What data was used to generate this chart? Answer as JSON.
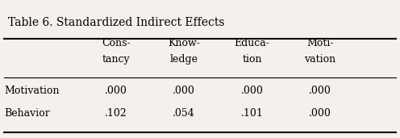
{
  "title": "Table 6. Standardized Indirect Effects",
  "col_headers": [
    [
      "Cons-",
      "tancy"
    ],
    [
      "Know-",
      "ledge"
    ],
    [
      "Educa-",
      "tion"
    ],
    [
      "Moti-",
      "vation"
    ]
  ],
  "row_labels": [
    "Motivation",
    "Behavior"
  ],
  "data": [
    [
      ".000",
      ".000",
      ".000",
      ".000"
    ],
    [
      ".102",
      ".054",
      ".101",
      ".000"
    ]
  ],
  "bg_color": "#f5f0eb",
  "title_fontsize": 10,
  "header_fontsize": 9,
  "data_fontsize": 9,
  "row_label_fontsize": 9
}
